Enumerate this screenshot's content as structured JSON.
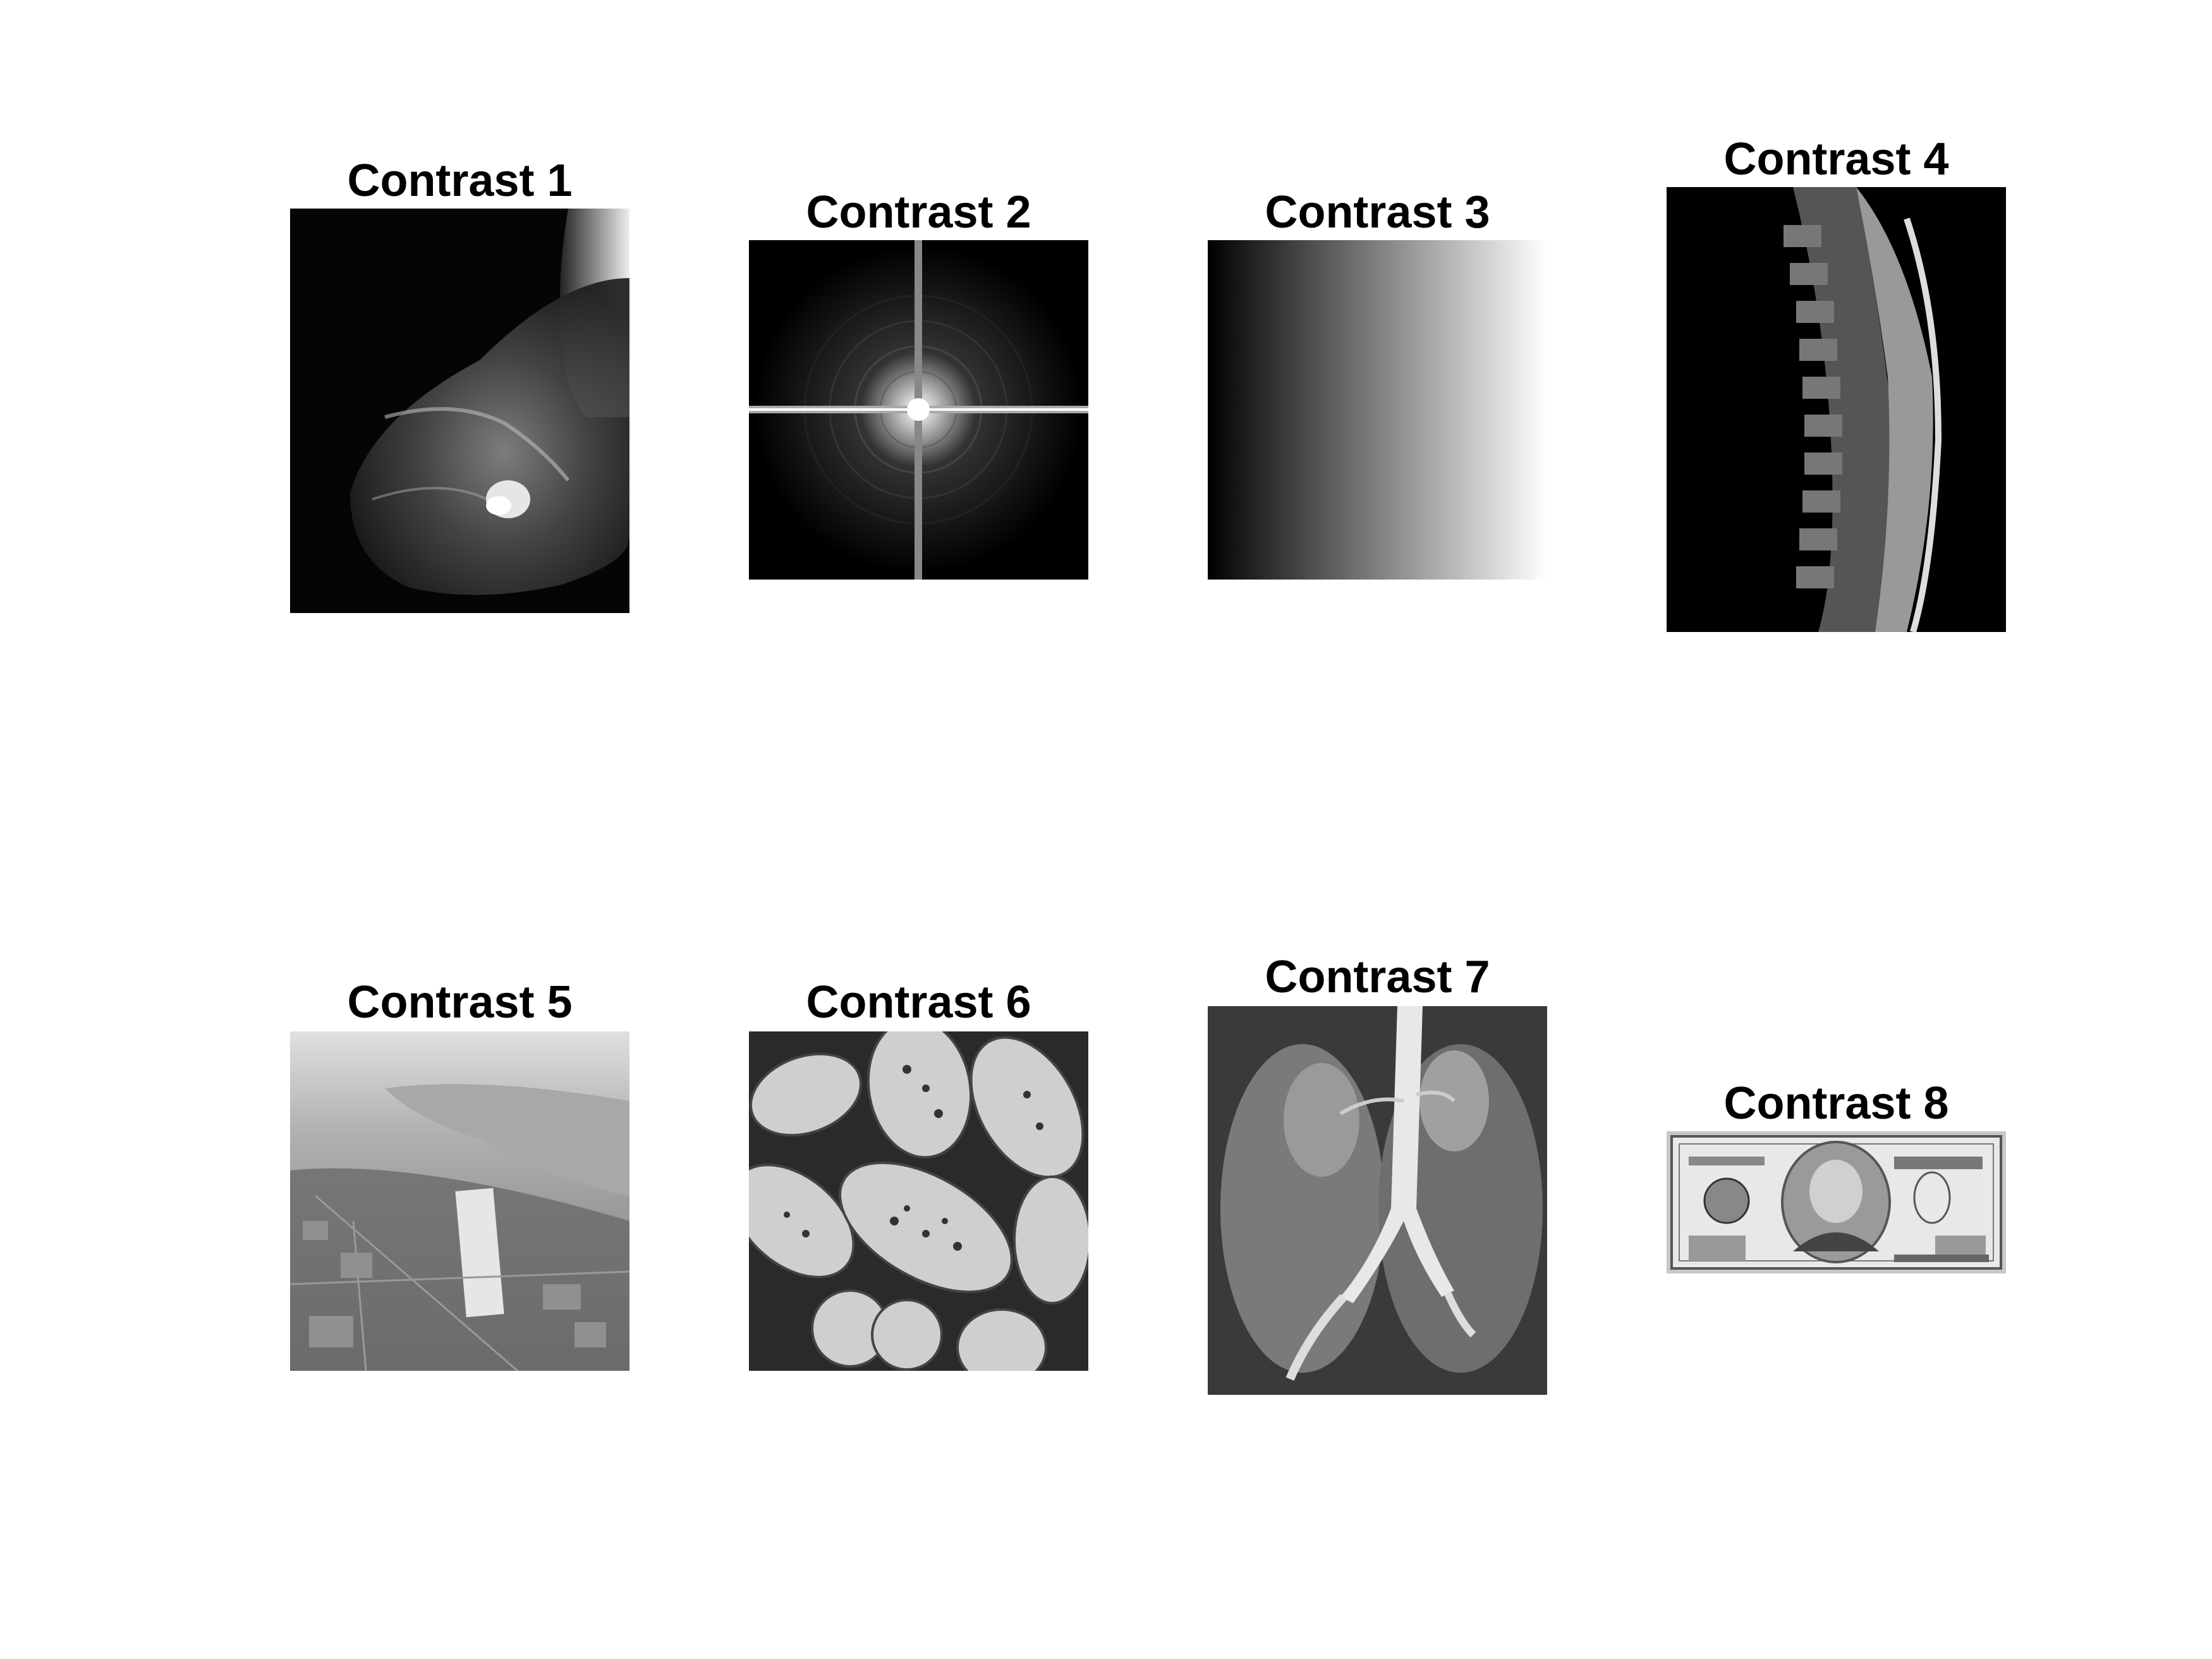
{
  "panels": [
    {
      "title": "Contrast 1",
      "image": "mammogram"
    },
    {
      "title": "Contrast 2",
      "image": "fourier-spectrum"
    },
    {
      "title": "Contrast 3",
      "image": "horizontal-gradient"
    },
    {
      "title": "Contrast 4",
      "image": "spine-mri"
    },
    {
      "title": "Contrast 5",
      "image": "aerial-city"
    },
    {
      "title": "Contrast 6",
      "image": "pollen-grains"
    },
    {
      "title": "Contrast 7",
      "image": "kidney-angiogram"
    },
    {
      "title": "Contrast 8",
      "image": "hundred-dollar-bill"
    }
  ],
  "colors": {
    "background": "#ffffff",
    "title": "#000000"
  }
}
